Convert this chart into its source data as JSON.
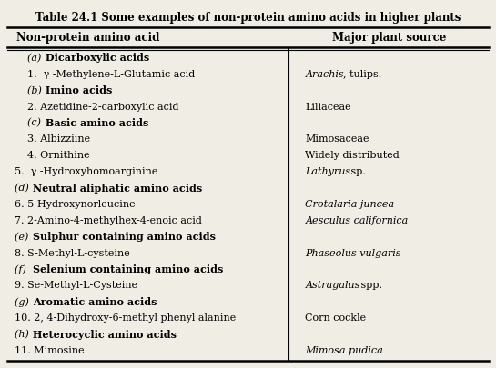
{
  "title": "Table 24.1 Some examples of non-protein amino acids in higher plants",
  "col1_header": "Non-protein amino acid",
  "col2_header": "Major plant source",
  "rows": [
    {
      "left_prefix": "(a)",
      "left_bold": "Dicarboxylic acids",
      "right": "",
      "right_italic": false,
      "right_mixed": null,
      "indent": true,
      "category": true
    },
    {
      "left_prefix": "",
      "left_plain": "1.  γ -Methylene-L-Glutamic acid",
      "right": "",
      "right_italic": false,
      "right_mixed": "arachis_tulips",
      "indent": true,
      "category": false
    },
    {
      "left_prefix": "(b)",
      "left_bold": "Imino acids",
      "right": "",
      "right_italic": false,
      "right_mixed": null,
      "indent": true,
      "category": true
    },
    {
      "left_prefix": "",
      "left_plain": "2. Azetidine-2-carboxylic acid",
      "right": "Liliaceae",
      "right_italic": false,
      "right_mixed": null,
      "indent": true,
      "category": false
    },
    {
      "left_prefix": "(c)",
      "left_bold": "Basic amino acids",
      "right": "",
      "right_italic": false,
      "right_mixed": null,
      "indent": true,
      "category": true
    },
    {
      "left_prefix": "",
      "left_plain": "3. Albizziine",
      "right": "Mimosaceae",
      "right_italic": false,
      "right_mixed": null,
      "indent": true,
      "category": false
    },
    {
      "left_prefix": "",
      "left_plain": "4. Ornithine",
      "right": "Widely distributed",
      "right_italic": false,
      "right_mixed": null,
      "indent": true,
      "category": false
    },
    {
      "left_prefix": "",
      "left_plain": "5.  γ -Hydroxyhomoarginine",
      "right": "",
      "right_italic": true,
      "right_mixed": "lathyrus_sp",
      "indent": false,
      "category": false
    },
    {
      "left_prefix": "(d)",
      "left_bold": "Neutral aliphatic amino acids",
      "right": "",
      "right_italic": false,
      "right_mixed": null,
      "indent": false,
      "category": true
    },
    {
      "left_prefix": "",
      "left_plain": "6. 5-Hydroxynorleucine",
      "right": "Crotalaria juncea",
      "right_italic": true,
      "right_mixed": null,
      "indent": false,
      "category": false
    },
    {
      "left_prefix": "",
      "left_plain": "7. 2-Amino-4-methylhex-4-enoic acid",
      "right": "Aesculus californica",
      "right_italic": true,
      "right_mixed": null,
      "indent": false,
      "category": false
    },
    {
      "left_prefix": "(e)",
      "left_bold": "Sulphur containing amino acids",
      "right": "",
      "right_italic": false,
      "right_mixed": null,
      "indent": false,
      "category": true
    },
    {
      "left_prefix": "",
      "left_plain": "8. S-Methyl-L-cysteine",
      "right": "Phaseolus vulgaris",
      "right_italic": true,
      "right_mixed": null,
      "indent": false,
      "category": false
    },
    {
      "left_prefix": "(f)",
      "left_bold": "Selenium containing amino acids",
      "right": "",
      "right_italic": false,
      "right_mixed": null,
      "indent": false,
      "category": true
    },
    {
      "left_prefix": "",
      "left_plain": "9. Se-Methyl-L-Cysteine",
      "right": "",
      "right_italic": true,
      "right_mixed": "astragalus_spp",
      "indent": false,
      "category": false
    },
    {
      "left_prefix": "(g)",
      "left_bold": "Aromatic amino acids",
      "right": "",
      "right_italic": false,
      "right_mixed": null,
      "indent": false,
      "category": true
    },
    {
      "left_prefix": "",
      "left_plain": "10. 2, 4-Dihydroxy-6-methyl phenyl alanine",
      "right": "Corn cockle",
      "right_italic": false,
      "right_mixed": null,
      "indent": false,
      "category": false
    },
    {
      "left_prefix": "(h)",
      "left_bold": "Heterocyclic amino acids",
      "right": "",
      "right_italic": false,
      "right_mixed": null,
      "indent": false,
      "category": true
    },
    {
      "left_prefix": "",
      "left_plain": "11. Mimosine",
      "right": "Mimosa pudica",
      "right_italic": true,
      "right_mixed": null,
      "indent": false,
      "category": false
    }
  ],
  "bg_color": "#f0ede4",
  "col_split": 0.585,
  "title_fontsize": 8.5,
  "body_fontsize": 8.0,
  "header_fontsize": 8.5
}
